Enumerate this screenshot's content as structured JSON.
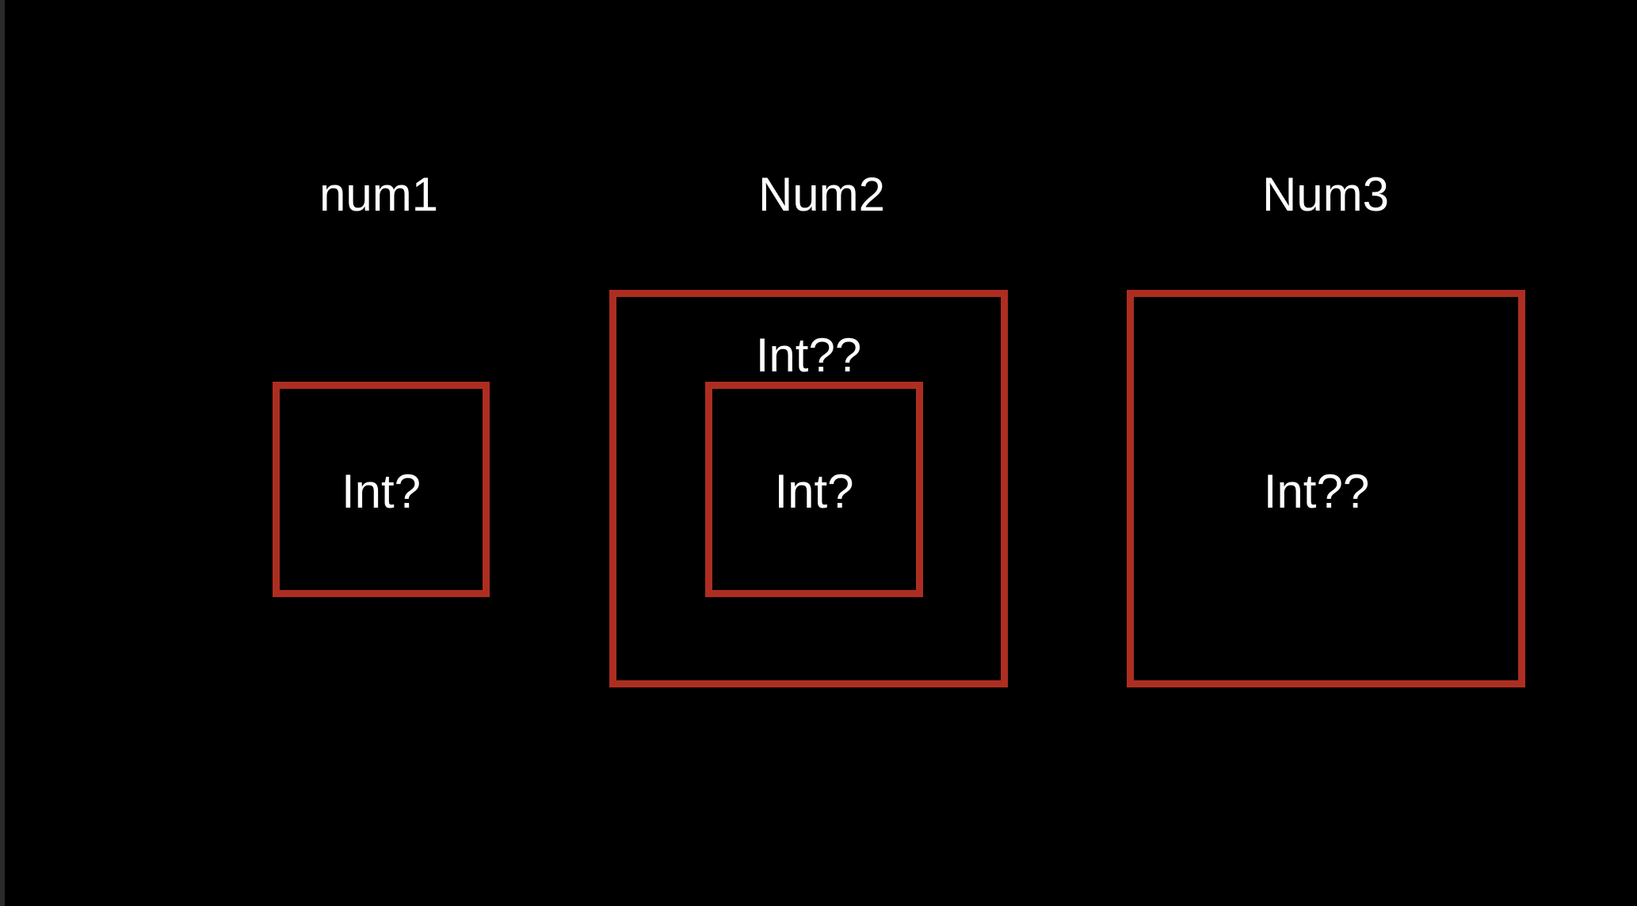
{
  "colors": {
    "background": "#000000",
    "border": "#ad2e21",
    "text": "#ffffff"
  },
  "num1": {
    "title": "num1",
    "inner_label": "Int?"
  },
  "num2": {
    "title": "Num2",
    "outer_label": "Int??",
    "inner_label": "Int?"
  },
  "num3": {
    "title": "Num3",
    "inner_label": "Int??"
  }
}
